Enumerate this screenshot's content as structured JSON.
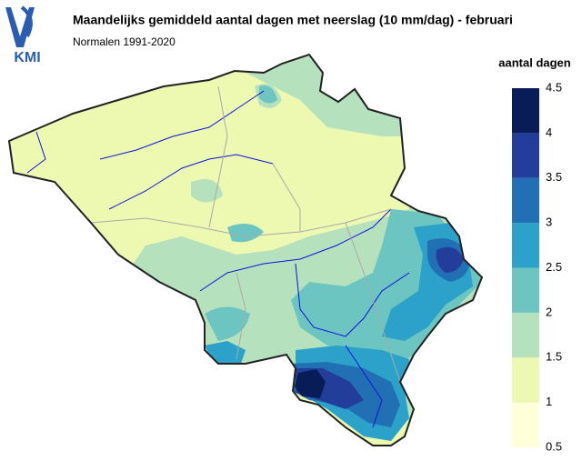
{
  "header": {
    "logo": "KMI",
    "title": "Maandelijks gemiddeld aantal dagen met neerslag (10 mm/dag) - februari",
    "subtitle": "Normalen 1991-2020"
  },
  "legend": {
    "title": "aantal dagen",
    "ticks": [
      0.5,
      1,
      1.5,
      2,
      2.5,
      3,
      3.5,
      4,
      4.5
    ],
    "colors": [
      "#ffffd9",
      "#edf8b1",
      "#b5e1bd",
      "#6cc5c0",
      "#2ca2cb",
      "#2270b4",
      "#233d9b",
      "#081d58"
    ]
  }
}
